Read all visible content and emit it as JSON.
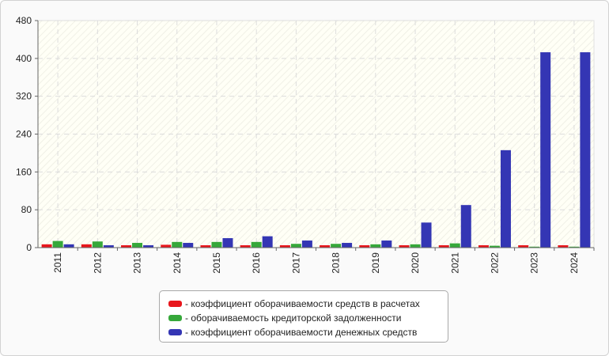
{
  "chart_data": {
    "type": "bar",
    "categories": [
      "2011",
      "2012",
      "2013",
      "2014",
      "2015",
      "2016",
      "2017",
      "2018",
      "2019",
      "2020",
      "2021",
      "2022",
      "2023",
      "2024"
    ],
    "series": [
      {
        "name": "коэффициент оборачиваемости средств в расчетах",
        "color": "#e8161c",
        "values": [
          7,
          7,
          5,
          6,
          5,
          5,
          5,
          5,
          5,
          5,
          5,
          5,
          5,
          5
        ]
      },
      {
        "name": "оборачиваемость кредиторской задолженности",
        "color": "#36a83a",
        "values": [
          14,
          13,
          10,
          12,
          12,
          12,
          8,
          8,
          7,
          7,
          9,
          4,
          2,
          2
        ]
      },
      {
        "name": "коэффициент оборачиваемости денежных средств",
        "color": "#3436b4",
        "values": [
          7,
          5,
          5,
          10,
          20,
          24,
          15,
          10,
          15,
          53,
          90,
          206,
          413,
          413
        ]
      }
    ],
    "ylim": [
      0,
      480
    ],
    "yticks": [
      0,
      80,
      160,
      240,
      320,
      400,
      480
    ],
    "grid": true,
    "legend_position": "bottom"
  }
}
